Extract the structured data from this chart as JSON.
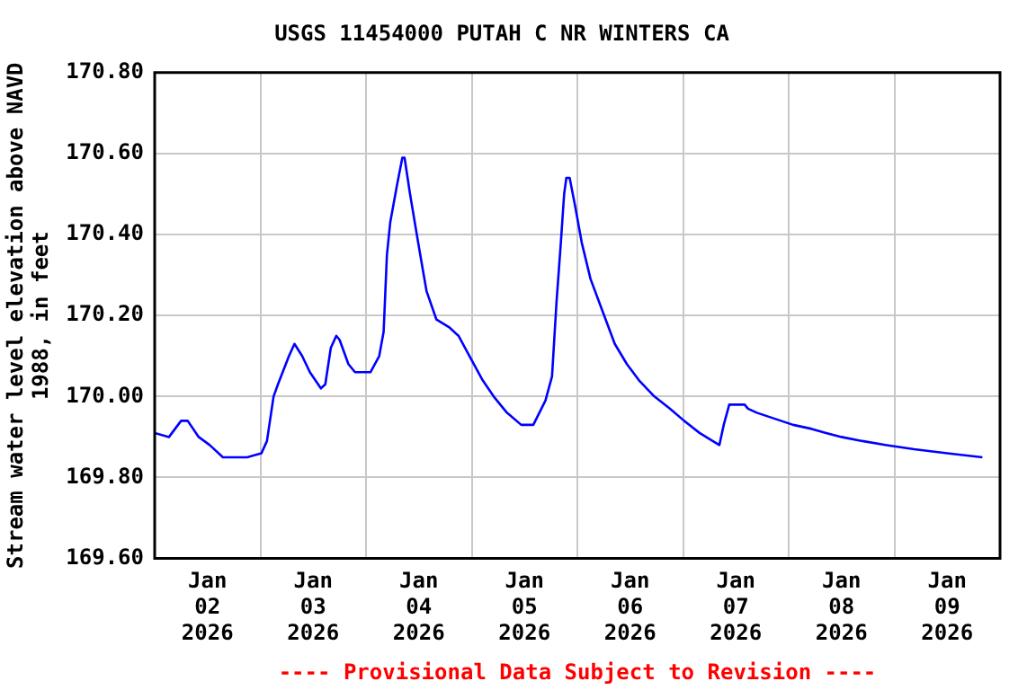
{
  "chart_data": {
    "type": "line",
    "title": "USGS 11454000 PUTAH C NR WINTERS CA",
    "ylabel": "Stream water level elevation above NAVD\n1988, in feet",
    "annotations": [
      "---- Provisional Data Subject to Revision ----"
    ],
    "x": [
      "2026-01-02T00:00",
      "2026-01-02T03:15",
      "2026-01-02T06:00",
      "2026-01-02T07:30",
      "2026-01-02T10:00",
      "2026-01-02T12:30",
      "2026-01-02T15:30",
      "2026-01-02T21:00",
      "2026-01-03T00:15",
      "2026-01-03T01:30",
      "2026-01-03T03:00",
      "2026-01-03T04:00",
      "2026-01-03T06:30",
      "2026-01-03T07:45",
      "2026-01-03T09:30",
      "2026-01-03T11:15",
      "2026-01-03T13:45",
      "2026-01-03T14:45",
      "2026-01-03T16:00",
      "2026-01-03T17:15",
      "2026-01-03T18:00",
      "2026-01-03T20:00",
      "2026-01-03T21:30",
      "2026-01-04T01:00",
      "2026-01-04T03:00",
      "2026-01-04T04:00",
      "2026-01-04T04:45",
      "2026-01-04T05:30",
      "2026-01-04T07:00",
      "2026-01-04T08:15",
      "2026-01-04T08:45",
      "2026-01-04T10:00",
      "2026-01-04T12:00",
      "2026-01-04T13:45",
      "2026-01-04T16:00",
      "2026-01-04T19:00",
      "2026-01-04T21:00",
      "2026-01-04T23:30",
      "2026-01-05T02:30",
      "2026-01-05T05:00",
      "2026-01-05T08:00",
      "2026-01-05T11:15",
      "2026-01-05T14:00",
      "2026-01-05T16:45",
      "2026-01-05T18:15",
      "2026-01-05T19:15",
      "2026-01-05T20:15",
      "2026-01-05T21:00",
      "2026-01-05T21:30",
      "2026-01-05T22:15",
      "2026-01-05T23:30",
      "2026-01-06T01:00",
      "2026-01-06T03:00",
      "2026-01-06T05:45",
      "2026-01-06T08:30",
      "2026-01-06T11:15",
      "2026-01-06T14:00",
      "2026-01-06T17:30",
      "2026-01-06T21:00",
      "2026-01-07T00:15",
      "2026-01-07T03:45",
      "2026-01-07T08:15",
      "2026-01-07T09:15",
      "2026-01-07T10:30",
      "2026-01-07T14:00",
      "2026-01-07T14:45",
      "2026-01-07T16:45",
      "2026-01-07T19:30",
      "2026-01-07T22:15",
      "2026-01-08T01:00",
      "2026-01-08T05:15",
      "2026-01-08T08:30",
      "2026-01-08T12:00",
      "2026-01-08T16:45",
      "2026-01-08T22:15",
      "2026-01-09T04:30",
      "2026-01-09T12:00",
      "2026-01-09T20:00"
    ],
    "series": [
      {
        "color": "#0000ff",
        "values": [
          169.91,
          169.9,
          169.94,
          169.94,
          169.9,
          169.88,
          169.85,
          169.85,
          169.86,
          169.89,
          170.0,
          170.03,
          170.1,
          170.13,
          170.1,
          170.06,
          170.02,
          170.03,
          170.12,
          170.15,
          170.14,
          170.08,
          170.06,
          170.06,
          170.1,
          170.16,
          170.35,
          170.43,
          170.52,
          170.59,
          170.59,
          170.5,
          170.37,
          170.26,
          170.19,
          170.17,
          170.15,
          170.1,
          170.04,
          170.0,
          169.96,
          169.93,
          169.93,
          169.99,
          170.05,
          170.23,
          170.38,
          170.5,
          170.54,
          170.54,
          170.47,
          170.38,
          170.29,
          170.21,
          170.13,
          170.08,
          170.04,
          170.0,
          169.97,
          169.94,
          169.91,
          169.88,
          169.93,
          169.98,
          169.98,
          169.97,
          169.96,
          169.95,
          169.94,
          169.93,
          169.92,
          169.91,
          169.9,
          169.89,
          169.88,
          169.87,
          169.86,
          169.85
        ]
      }
    ],
    "xlim": [
      "2026-01-02T00:00",
      "2026-01-10T00:00"
    ],
    "xticks": [
      {
        "value": "2026-01-02T12:00",
        "label": "Jan\n02\n2026"
      },
      {
        "value": "2026-01-03T00:00",
        "label": null
      },
      {
        "value": "2026-01-03T12:00",
        "label": "Jan\n03\n2026"
      },
      {
        "value": "2026-01-04T00:00",
        "label": null
      },
      {
        "value": "2026-01-04T12:00",
        "label": "Jan\n04\n2026"
      },
      {
        "value": "2026-01-05T00:00",
        "label": null
      },
      {
        "value": "2026-01-05T12:00",
        "label": "Jan\n05\n2026"
      },
      {
        "value": "2026-01-06T00:00",
        "label": null
      },
      {
        "value": "2026-01-06T12:00",
        "label": "Jan\n06\n2026"
      },
      {
        "value": "2026-01-07T00:00",
        "label": null
      },
      {
        "value": "2026-01-07T12:00",
        "label": "Jan\n07\n2026"
      },
      {
        "value": "2026-01-08T00:00",
        "label": null
      },
      {
        "value": "2026-01-08T12:00",
        "label": "Jan\n08\n2026"
      },
      {
        "value": "2026-01-09T00:00",
        "label": null
      },
      {
        "value": "2026-01-09T12:00",
        "label": "Jan\n09\n2026"
      }
    ],
    "ylim": [
      169.6,
      170.8
    ],
    "yticks": [
      {
        "value": 169.6,
        "label": "169.60"
      },
      {
        "value": 169.8,
        "label": "169.80"
      },
      {
        "value": 170.0,
        "label": "170.00"
      },
      {
        "value": 170.2,
        "label": "170.20"
      },
      {
        "value": 170.4,
        "label": "170.40"
      },
      {
        "value": 170.6,
        "label": "170.60"
      },
      {
        "value": 170.8,
        "label": "170.80"
      }
    ],
    "grid": true,
    "legend": false,
    "marker": "none",
    "line_style": "solid"
  }
}
